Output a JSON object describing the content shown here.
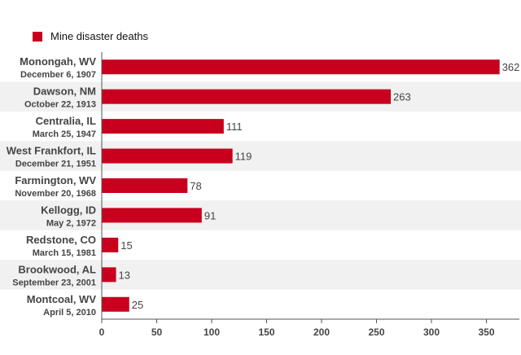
{
  "legend": {
    "label": "Mine disaster deaths"
  },
  "colors": {
    "bar": "#c8001e",
    "band": "#f1f1f1",
    "axis": "#555555",
    "text": "#444444"
  },
  "chart_data": {
    "type": "bar",
    "orientation": "horizontal",
    "categories": [
      {
        "name": "Monongah, WV",
        "date": "December 6, 1907"
      },
      {
        "name": "Dawson, NM",
        "date": "October 22, 1913"
      },
      {
        "name": "Centralia, IL",
        "date": "March 25, 1947"
      },
      {
        "name": "West Frankfort, IL",
        "date": "December 21, 1951"
      },
      {
        "name": "Farmington, WV",
        "date": "November 20, 1968"
      },
      {
        "name": "Kellogg, ID",
        "date": "May 2, 1972"
      },
      {
        "name": "Redstone, CO",
        "date": "March 15, 1981"
      },
      {
        "name": "Brookwood, AL",
        "date": "September 23, 2001"
      },
      {
        "name": "Montcoal, WV",
        "date": "April 5, 2010"
      }
    ],
    "series": [
      {
        "name": "Mine disaster deaths",
        "values": [
          362,
          263,
          111,
          119,
          78,
          91,
          15,
          13,
          25
        ]
      }
    ],
    "xlim": [
      0,
      380
    ],
    "xticks": [
      0,
      50,
      100,
      150,
      200,
      250,
      300,
      350
    ],
    "alternating_bands": true,
    "legend_position": "top-left",
    "data_labels": true
  }
}
